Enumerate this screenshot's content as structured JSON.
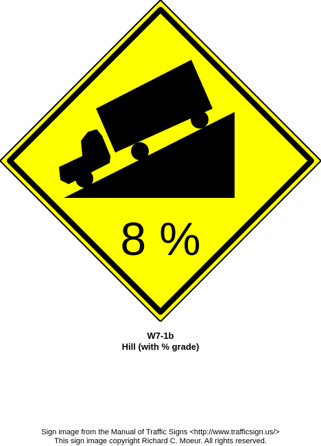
{
  "sign": {
    "grade_text": "8 %",
    "code": "W7-1b",
    "name": "Hill (with % grade)",
    "background_color": "#FFFF00",
    "border_color": "#000000",
    "symbol_icon": "truck-on-hill-icon"
  },
  "footer": {
    "source_line": "Sign image from the Manual of Traffic Signs <http://www.trafficsign.us/>",
    "copyright_line": "This sign image copyright Richard C. Moeur. All rights reserved."
  }
}
